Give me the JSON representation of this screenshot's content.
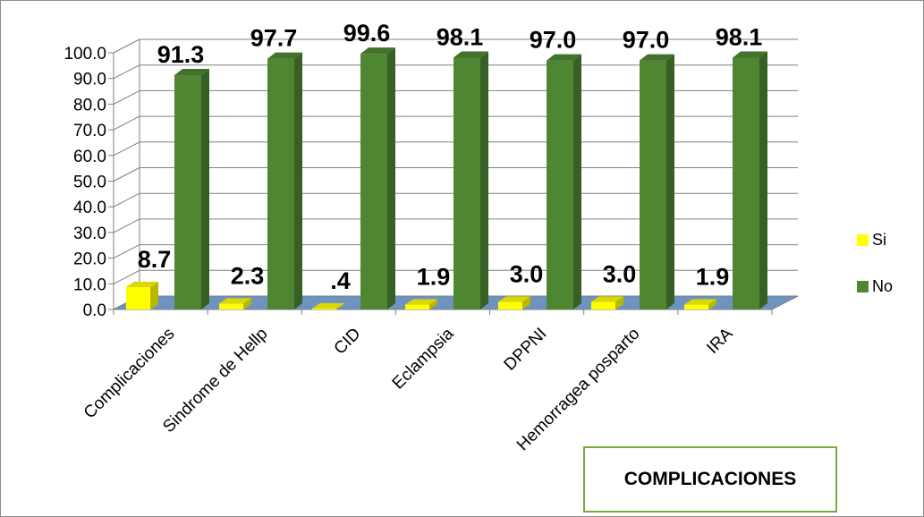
{
  "chart_data": {
    "type": "bar",
    "title": "COMPLICACIONES",
    "categories": [
      "Complicaciones",
      "Sindrome de Hellp",
      "CID",
      "Eclampsia",
      "DPPNI",
      "Hemorragea posparto",
      "IRA"
    ],
    "series": [
      {
        "name": "Si",
        "values": [
          8.7,
          2.3,
          0.4,
          1.9,
          3.0,
          3.0,
          1.9
        ],
        "labels": [
          "8.7",
          "2.3",
          ".4",
          "1.9",
          "3.0",
          "3.0",
          "1.9"
        ],
        "color": "#ffff00"
      },
      {
        "name": "No",
        "values": [
          91.3,
          97.7,
          99.6,
          98.1,
          97.0,
          97.0,
          98.1
        ],
        "labels": [
          "91.3",
          "97.7",
          "99.6",
          "98.1",
          "97.0",
          "97.0",
          "98.1"
        ],
        "color": "#4e8632"
      }
    ],
    "ylim": [
      0,
      100
    ],
    "yticks": [
      "0.0",
      "10.0",
      "20.0",
      "30.0",
      "40.0",
      "50.0",
      "60.0",
      "70.0",
      "80.0",
      "90.0",
      "100.0"
    ],
    "grid": true,
    "legend_position": "right",
    "floor_color": "#6f93c1"
  }
}
